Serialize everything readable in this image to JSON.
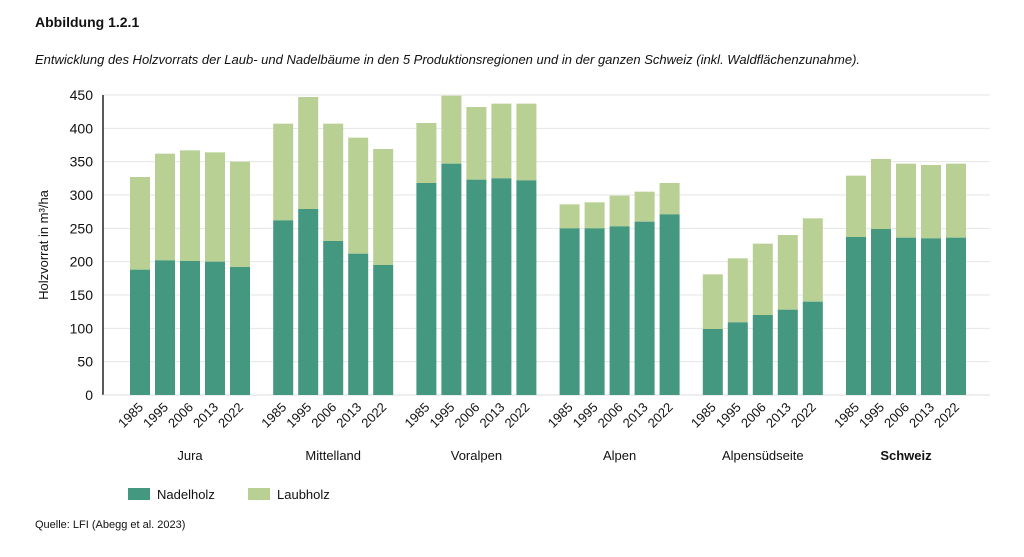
{
  "title": "Abbildung 1.2.1",
  "subtitle": "Entwicklung des Holzvorrats der Laub- und Nadelbäume in den 5 Produktionsregionen und in der ganzen Schweiz (inkl. Waldflächenzunahme).",
  "source": "Quelle: LFI (Abegg et al. 2023)",
  "chart_data": {
    "type": "bar",
    "stacked": true,
    "ylabel": "Holzvorrat in m³/ha",
    "xlabel": "",
    "ylim": [
      0,
      450
    ],
    "yticks": [
      0,
      50,
      100,
      150,
      200,
      250,
      300,
      350,
      400,
      450
    ],
    "grid": true,
    "legend_position": "bottom-left",
    "years": [
      "1985",
      "1995",
      "2006",
      "2013",
      "2022"
    ],
    "groups": [
      {
        "name": "Jura",
        "bold": false,
        "nadelholz": [
          188,
          202,
          201,
          200,
          192
        ],
        "total": [
          327,
          362,
          367,
          364,
          350
        ]
      },
      {
        "name": "Mittelland",
        "bold": false,
        "nadelholz": [
          262,
          279,
          231,
          212,
          195
        ],
        "total": [
          407,
          447,
          407,
          386,
          369
        ]
      },
      {
        "name": "Voralpen",
        "bold": false,
        "nadelholz": [
          318,
          347,
          323,
          325,
          322
        ],
        "total": [
          408,
          449,
          432,
          437,
          437
        ]
      },
      {
        "name": "Alpen",
        "bold": false,
        "nadelholz": [
          250,
          250,
          253,
          260,
          271
        ],
        "total": [
          286,
          289,
          299,
          305,
          318
        ]
      },
      {
        "name": "Alpensüdseite",
        "bold": false,
        "nadelholz": [
          99,
          109,
          120,
          128,
          140
        ],
        "total": [
          181,
          205,
          227,
          240,
          265
        ]
      },
      {
        "name": "Schweiz",
        "bold": true,
        "nadelholz": [
          237,
          249,
          236,
          235,
          236
        ],
        "total": [
          329,
          354,
          347,
          345,
          347
        ]
      }
    ],
    "series": [
      {
        "name": "Nadelholz",
        "color": "#43987f"
      },
      {
        "name": "Laubholz",
        "color": "#b8d093"
      }
    ]
  }
}
